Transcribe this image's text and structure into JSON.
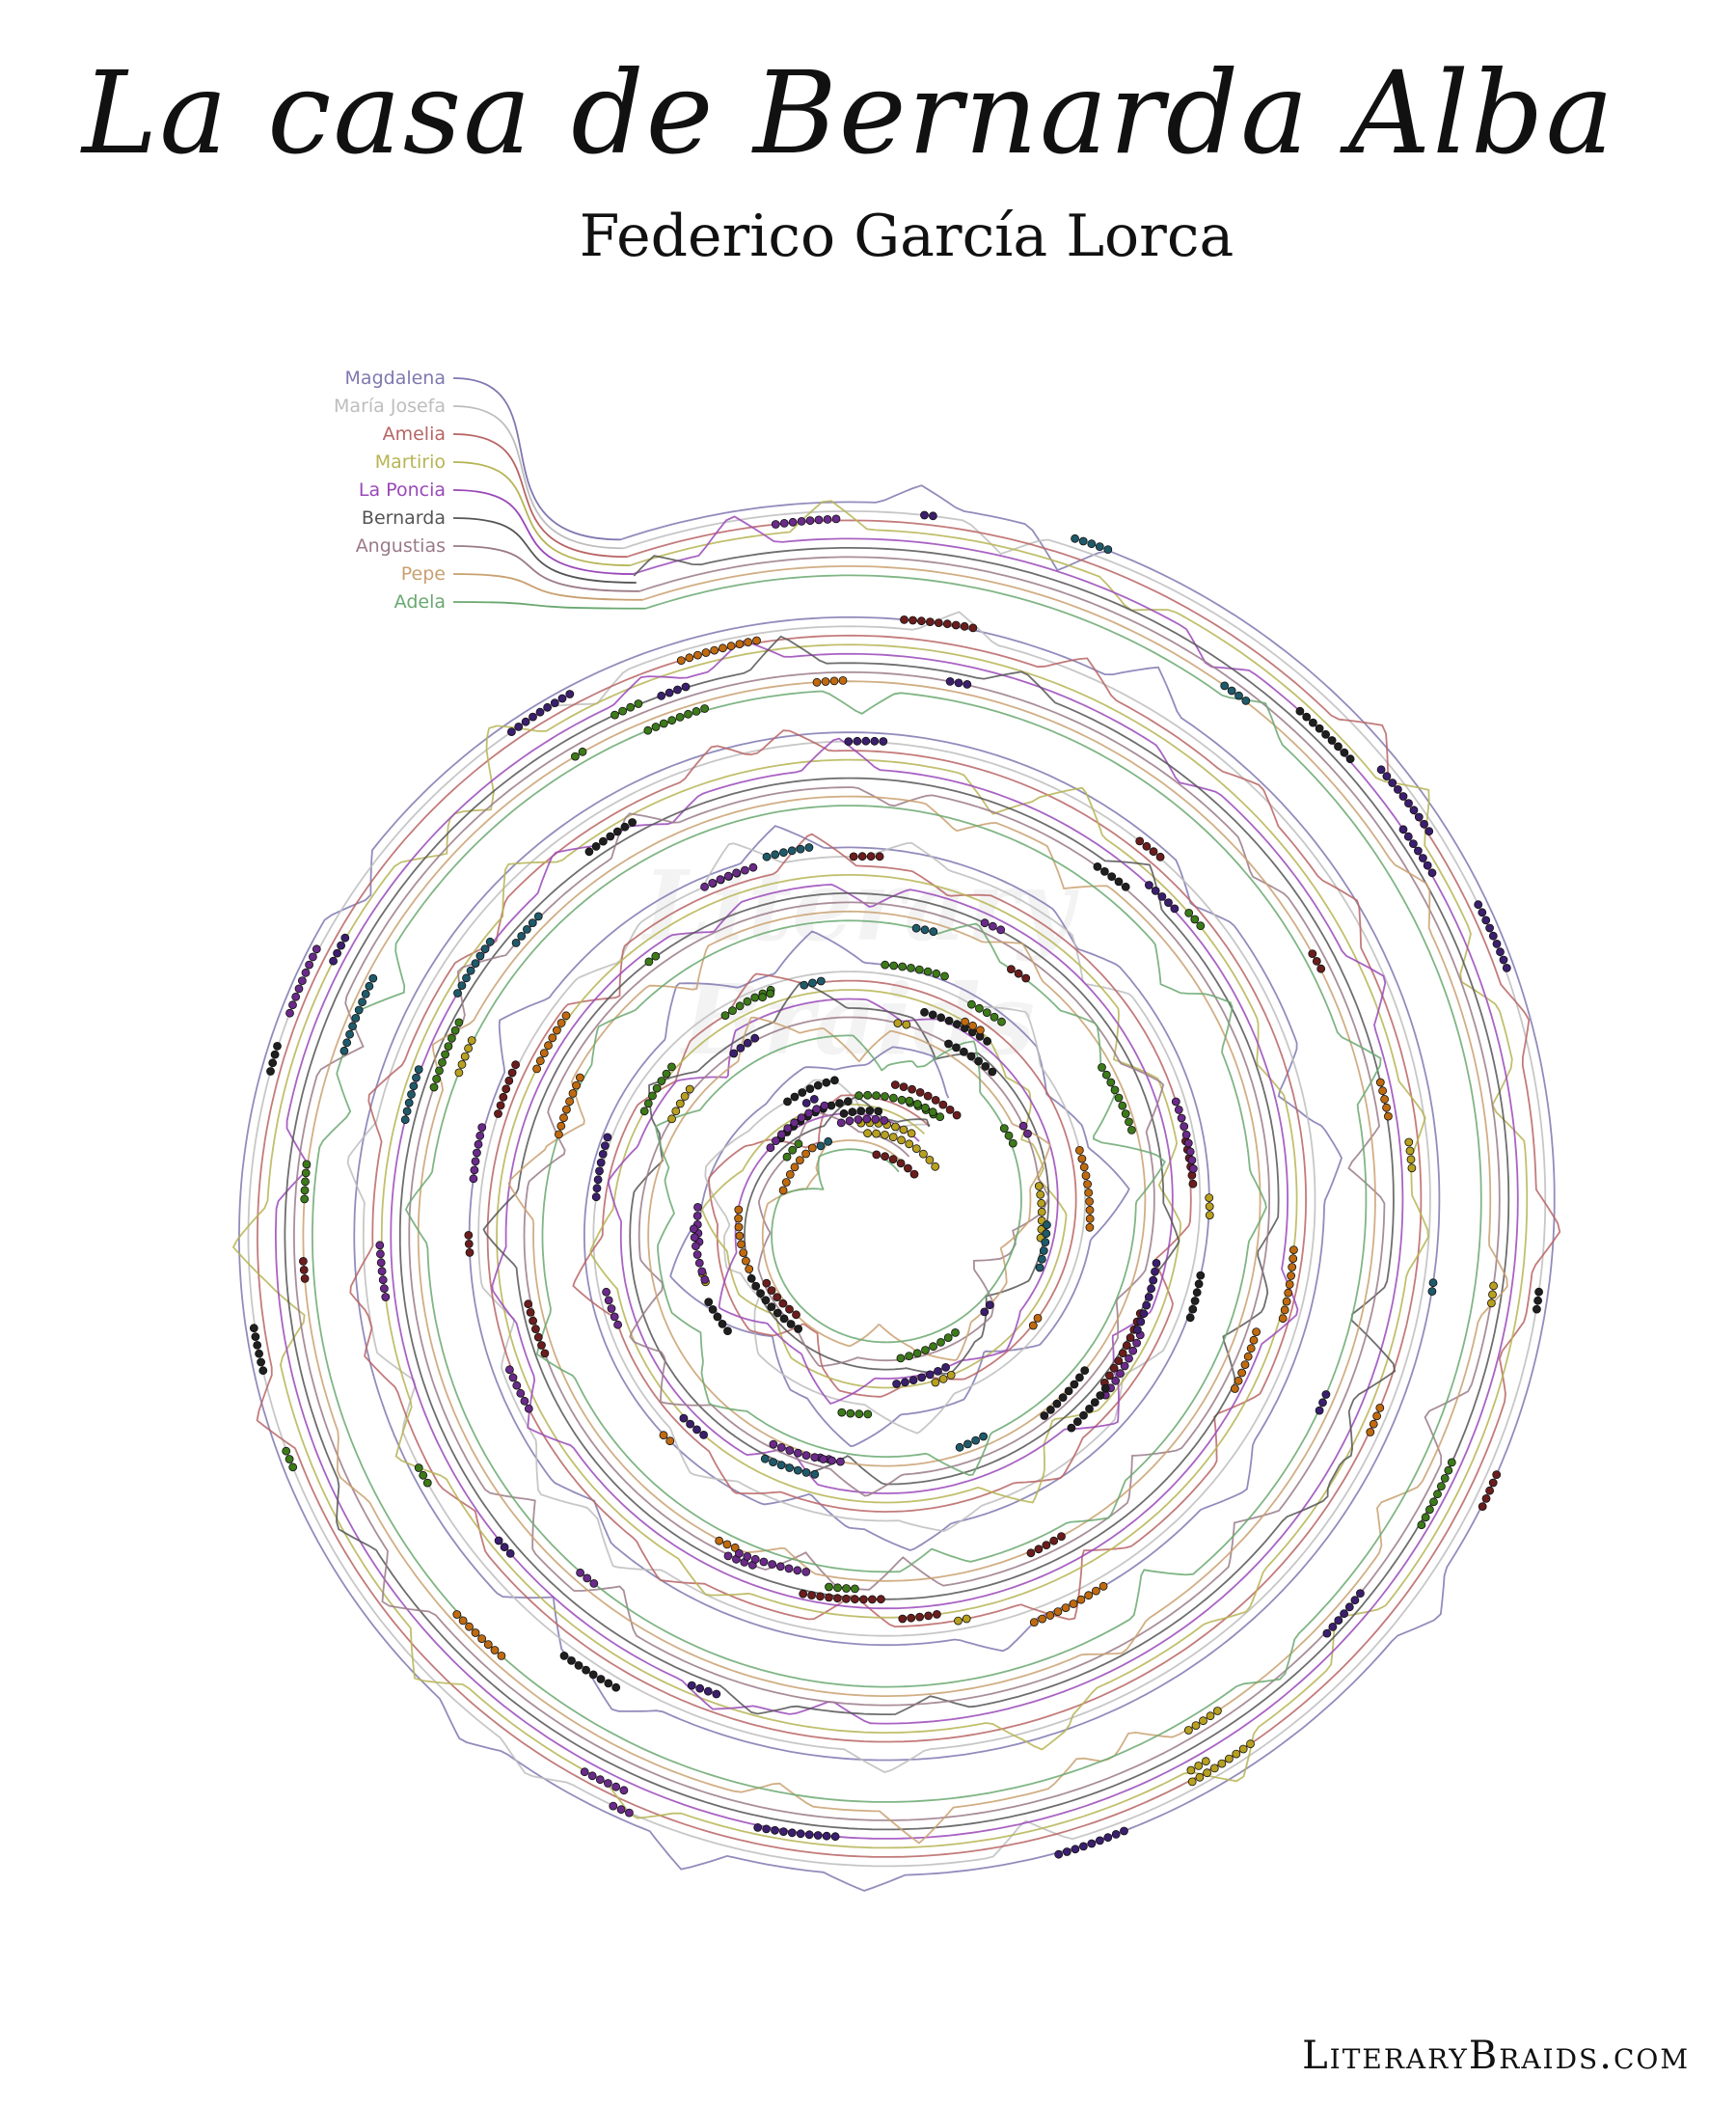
{
  "title": "La casa de Bernarda Alba",
  "subtitle": "Federico García Lorca",
  "watermark": "Literary Braids",
  "footer": "LiteraryBraids.com",
  "characters": [
    {
      "name": "Magdalena",
      "color": "#7f78b0"
    },
    {
      "name": "María Josefa",
      "color": "#bdbdbd"
    },
    {
      "name": "Amelia",
      "color": "#b86464"
    },
    {
      "name": "Martirio",
      "color": "#b6b454"
    },
    {
      "name": "La Poncia",
      "color": "#9a48b8"
    },
    {
      "name": "Bernarda",
      "color": "#555555"
    },
    {
      "name": "Angustias",
      "color": "#9a7a88"
    },
    {
      "name": "Pepe",
      "color": "#c9a070"
    },
    {
      "name": "Adela",
      "color": "#6aa870"
    }
  ]
}
